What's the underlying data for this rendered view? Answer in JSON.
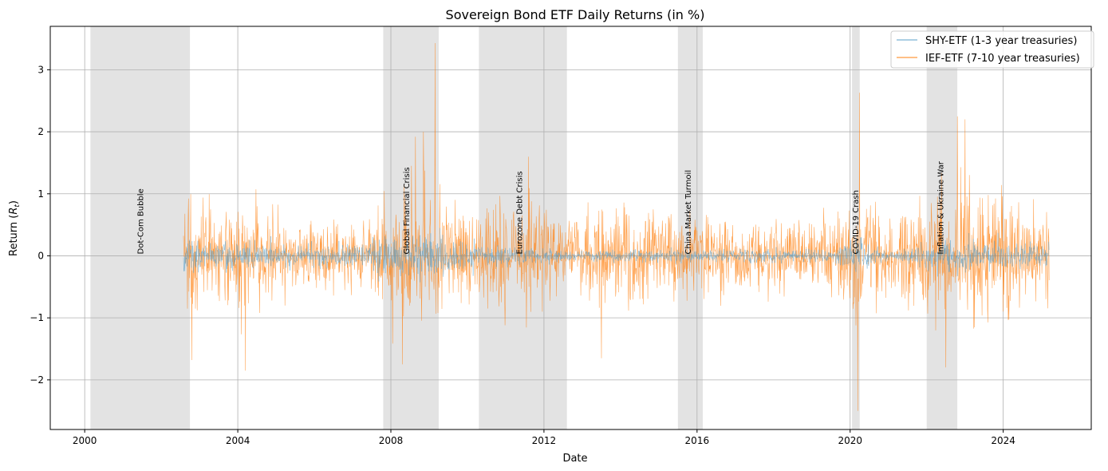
{
  "chart_data": {
    "type": "line",
    "title": "Sovereign Bond ETF Daily Returns (in %)",
    "xlabel": "Date",
    "ylabel": "Return (R_t)",
    "ylabel_main": "Return (",
    "ylabel_var": "R",
    "ylabel_sub": "t",
    "ylabel_close": ")",
    "xlim": [
      1999.1,
      2026.3
    ],
    "ylim": [
      -2.8,
      3.7
    ],
    "x_ticks": [
      2000,
      2004,
      2008,
      2012,
      2016,
      2020,
      2024
    ],
    "x_tick_labels": [
      "2000",
      "2004",
      "2008",
      "2012",
      "2016",
      "2020",
      "2024"
    ],
    "y_ticks": [
      -2,
      -1,
      0,
      1,
      2,
      3
    ],
    "y_tick_labels": [
      "−2",
      "−1",
      "0",
      "1",
      "2",
      "3"
    ],
    "grid": true,
    "legend_position": "top-right",
    "series": [
      {
        "name": "SHY-ETF (1-3 year treasuries)",
        "color": "#5a9fc9",
        "volatility": [
          [
            2002.58,
            0.12
          ],
          [
            2007.0,
            0.07
          ],
          [
            2008.0,
            0.18
          ],
          [
            2009.2,
            0.16
          ],
          [
            2010.5,
            0.08
          ],
          [
            2013.0,
            0.04
          ],
          [
            2016.0,
            0.05
          ],
          [
            2019.5,
            0.05
          ],
          [
            2020.2,
            0.15
          ],
          [
            2021.0,
            0.03
          ],
          [
            2022.3,
            0.12
          ],
          [
            2025.2,
            0.09
          ]
        ]
      },
      {
        "name": "IEF-ETF (7-10 year treasuries)",
        "color": "#ff7f0e",
        "volatility": [
          [
            2002.58,
            0.45
          ],
          [
            2004.0,
            0.4
          ],
          [
            2005.5,
            0.28
          ],
          [
            2007.0,
            0.28
          ],
          [
            2008.0,
            0.5
          ],
          [
            2009.0,
            0.5
          ],
          [
            2010.5,
            0.38
          ],
          [
            2011.5,
            0.46
          ],
          [
            2012.5,
            0.28
          ],
          [
            2013.5,
            0.36
          ],
          [
            2016.0,
            0.32
          ],
          [
            2018.0,
            0.26
          ],
          [
            2019.6,
            0.3
          ],
          [
            2020.2,
            0.45
          ],
          [
            2021.0,
            0.25
          ],
          [
            2022.2,
            0.55
          ],
          [
            2023.5,
            0.5
          ],
          [
            2025.2,
            0.35
          ]
        ],
        "peaks": [
          [
            2009.15,
            3.43
          ],
          [
            2020.25,
            2.63
          ],
          [
            2020.2,
            -2.5
          ],
          [
            2008.85,
            2.0
          ],
          [
            2022.8,
            2.25
          ],
          [
            2008.3,
            -1.75
          ],
          [
            2004.2,
            -1.85
          ],
          [
            2013.5,
            -1.65
          ],
          [
            2002.8,
            -1.68
          ],
          [
            2022.5,
            -1.8
          ],
          [
            2011.6,
            1.6
          ],
          [
            2023.0,
            2.2
          ]
        ]
      }
    ],
    "shaded_periods": [
      {
        "label": "Dot-Com Bubble",
        "start": 2000.15,
        "end": 2002.75,
        "label_x": 2001.45
      },
      {
        "label": "Global Financial Crisis",
        "start": 2007.8,
        "end": 2009.25,
        "label_x": 2008.4
      },
      {
        "label": "Eurozone Debt Crisis",
        "start": 2010.3,
        "end": 2012.6,
        "label_x": 2011.35
      },
      {
        "label": "China Market Turmoil",
        "start": 2015.5,
        "end": 2016.15,
        "label_x": 2015.75
      },
      {
        "label": "COVID-19 Crash",
        "start": 2020.05,
        "end": 2020.25,
        "label_x": 2020.13
      },
      {
        "label": "Inflation & Ukraine War",
        "start": 2022.0,
        "end": 2022.8,
        "label_x": 2022.35
      }
    ],
    "data_start": 2002.58,
    "data_end": 2025.2
  }
}
